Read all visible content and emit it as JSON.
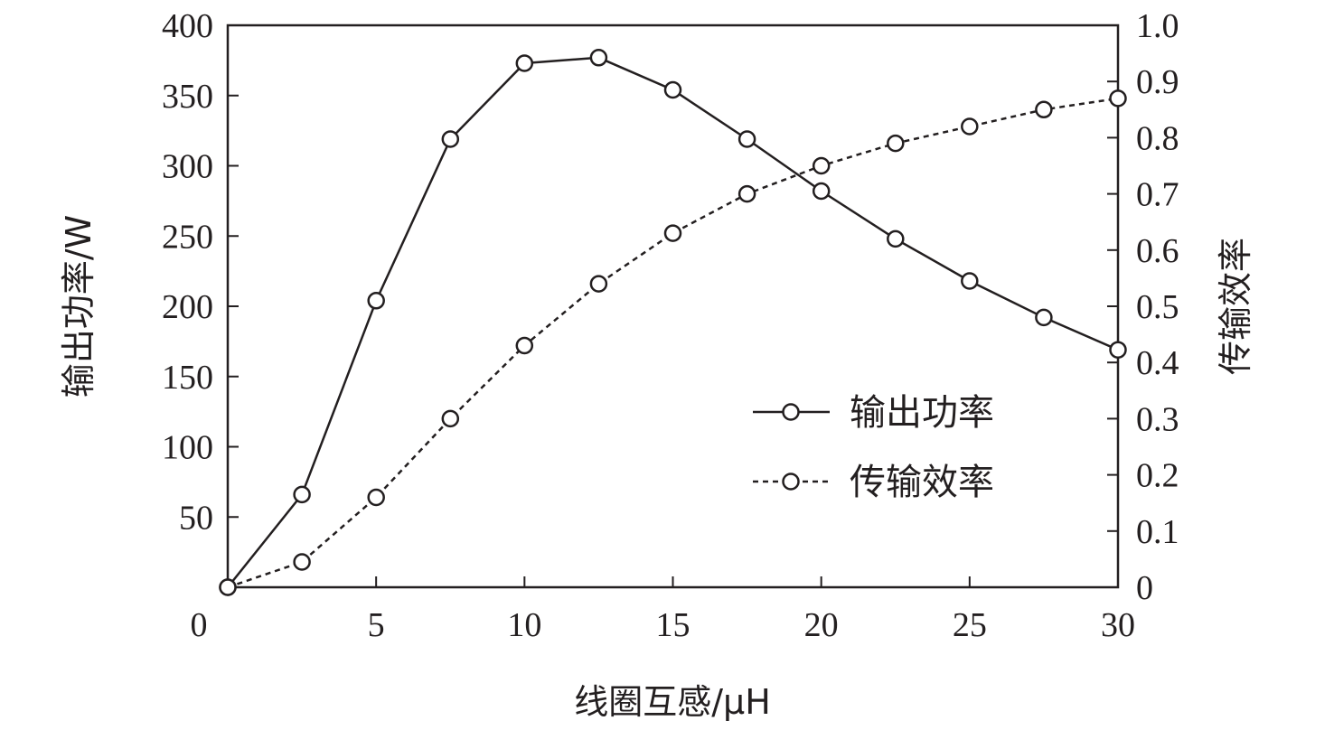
{
  "chart_data": {
    "type": "line",
    "xlabel": "线圈互感/μH",
    "ylabel_left": "输出功率/W",
    "ylabel_right": "传输效率",
    "xlim": [
      0,
      30
    ],
    "ylim_left": [
      0,
      400
    ],
    "ylim_right": [
      0,
      1.0
    ],
    "x_ticks": [
      "0",
      "5",
      "10",
      "15",
      "20",
      "25",
      "30"
    ],
    "y_ticks_left": [
      "50",
      "100",
      "150",
      "200",
      "250",
      "300",
      "350",
      "400"
    ],
    "y_ticks_right": [
      "0",
      "0.1",
      "0.2",
      "0.3",
      "0.4",
      "0.5",
      "0.6",
      "0.7",
      "0.8",
      "0.9",
      "1.0"
    ],
    "grid": false,
    "legend_position": "center-right",
    "x": [
      0,
      2.5,
      5,
      7.5,
      10,
      12.5,
      15,
      17.5,
      20,
      22.5,
      25,
      27.5,
      30
    ],
    "series": [
      {
        "name": "输出功率",
        "axis": "left",
        "line_style": "solid",
        "marker": "open-circle",
        "values": [
          0,
          66,
          204,
          319,
          373,
          377,
          354,
          319,
          282,
          248,
          218,
          192,
          169
        ]
      },
      {
        "name": "传输效率",
        "axis": "right",
        "line_style": "dashed",
        "marker": "open-circle",
        "values": [
          0,
          0.045,
          0.16,
          0.3,
          0.43,
          0.54,
          0.63,
          0.7,
          0.75,
          0.79,
          0.82,
          0.85,
          0.87
        ]
      }
    ]
  }
}
